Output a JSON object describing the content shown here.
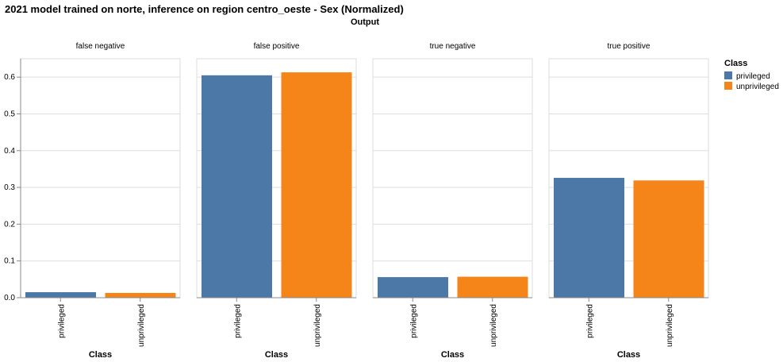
{
  "chart_data": {
    "type": "bar",
    "title": "2021 model trained on norte, inference on region centro_oeste - Sex (Normalized)",
    "column_header": "Output",
    "xlabel": "Class",
    "ylabel": "",
    "ylim": [
      0,
      0.65
    ],
    "yticks": [
      0.0,
      0.1,
      0.2,
      0.3,
      0.4,
      0.5,
      0.6
    ],
    "ytick_labels": [
      "0.0",
      "0.1",
      "0.2",
      "0.3",
      "0.4",
      "0.5",
      "0.6"
    ],
    "grid": true,
    "categories": [
      "privileged",
      "unprivileged"
    ],
    "colors": {
      "privileged": "#4c78a8",
      "unprivileged": "#f58518"
    },
    "legend": {
      "title": "Class",
      "placement": "right",
      "entries": [
        "privileged",
        "unprivileged"
      ]
    },
    "facets": [
      {
        "name": "false negative",
        "values": [
          0.015,
          0.013
        ]
      },
      {
        "name": "false positive",
        "values": [
          0.605,
          0.613
        ]
      },
      {
        "name": "true negative",
        "values": [
          0.056,
          0.057
        ]
      },
      {
        "name": "true positive",
        "values": [
          0.326,
          0.319
        ]
      }
    ]
  }
}
